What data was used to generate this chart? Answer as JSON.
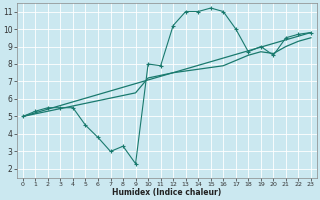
{
  "bg_color": "#cbe8f0",
  "line_color": "#1a7a6e",
  "grid_color": "#ffffff",
  "xlabel": "Humidex (Indice chaleur)",
  "xlim": [
    -0.5,
    23.5
  ],
  "ylim": [
    1.5,
    11.5
  ],
  "xticks": [
    0,
    1,
    2,
    3,
    4,
    5,
    6,
    7,
    8,
    9,
    10,
    11,
    12,
    13,
    14,
    15,
    16,
    17,
    18,
    19,
    20,
    21,
    22,
    23
  ],
  "yticks": [
    2,
    3,
    4,
    5,
    6,
    7,
    8,
    9,
    10,
    11
  ],
  "curve1_x": [
    0,
    1,
    2,
    3,
    4,
    5,
    6,
    7,
    8,
    9,
    10,
    11,
    12,
    13,
    14,
    15,
    16,
    17,
    18,
    19,
    20,
    21,
    22,
    23
  ],
  "curve1_y": [
    5.0,
    5.3,
    5.5,
    5.5,
    5.5,
    4.5,
    3.8,
    3.0,
    3.3,
    2.3,
    8.0,
    7.9,
    10.2,
    11.0,
    11.0,
    11.2,
    11.0,
    10.0,
    8.7,
    9.0,
    8.5,
    9.5,
    9.7,
    9.8
  ],
  "curve2_x": [
    0,
    23
  ],
  "curve2_y": [
    5.0,
    9.8
  ],
  "curve3_x": [
    0,
    1,
    2,
    3,
    4,
    5,
    6,
    7,
    8,
    9,
    10,
    11,
    12,
    13,
    14,
    15,
    16,
    17,
    18,
    19,
    20,
    21,
    22,
    23
  ],
  "curve3_y": [
    5.0,
    5.15,
    5.3,
    5.45,
    5.6,
    5.75,
    5.9,
    6.05,
    6.2,
    6.35,
    7.2,
    7.35,
    7.5,
    7.6,
    7.7,
    7.8,
    7.9,
    8.2,
    8.5,
    8.7,
    8.6,
    9.0,
    9.3,
    9.5
  ]
}
